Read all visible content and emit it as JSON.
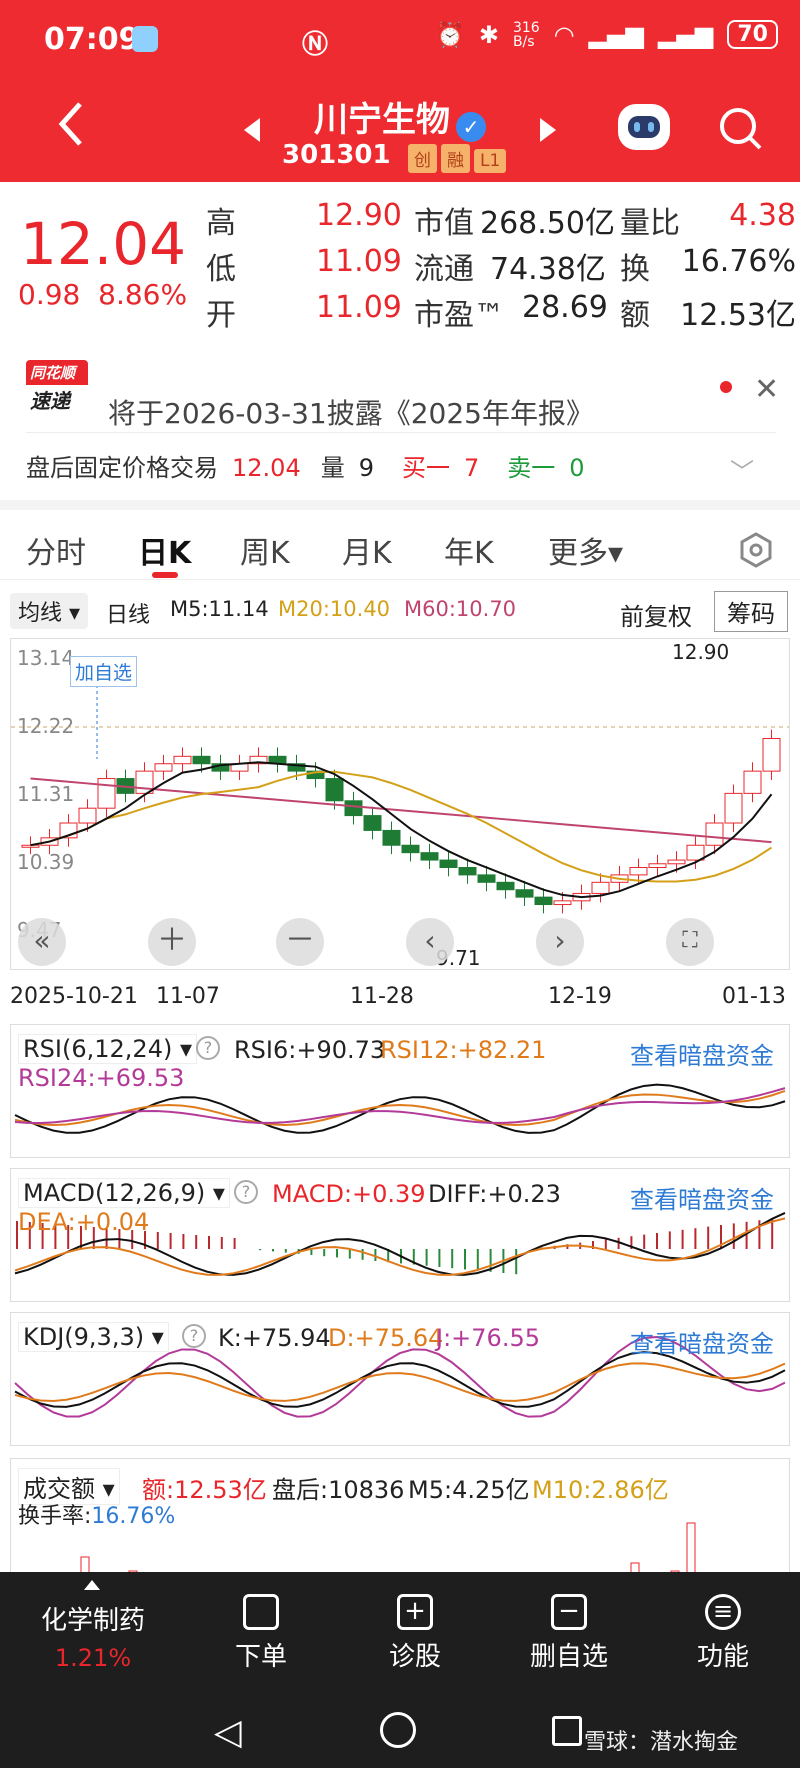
{
  "status": {
    "time": "07:09",
    "net": "316\nB/s",
    "battery": "70"
  },
  "header": {
    "name": "川宁生物",
    "code": "301301",
    "tags": [
      "创",
      "融",
      "L1"
    ]
  },
  "quote": {
    "price": "12.04",
    "change": "0.98",
    "change_pct": "8.86%",
    "rows": [
      {
        "l1": "高",
        "v1": "12.90",
        "l2": "市值",
        "v2": "268.50亿",
        "l3": "量比",
        "v3": "4.38"
      },
      {
        "l1": "低",
        "v1": "11.09",
        "l2": "流通",
        "v2": "74.38亿",
        "l3": "换",
        "v3": "16.76%"
      },
      {
        "l1": "开",
        "v1": "11.09",
        "l2": "市盈™",
        "v2": "28.69",
        "l3": "额",
        "v3": "12.53亿"
      }
    ]
  },
  "notice": {
    "logo_top": "同花顺",
    "logo_bottom": "速递",
    "text": "将于2026-03-31披露《2025年年报》"
  },
  "afterhours": {
    "label": "盘后固定价格交易",
    "price": "12.04",
    "vol_label": "量",
    "vol": "9",
    "buy_label": "买一",
    "buy": "7",
    "sell_label": "卖一",
    "sell": "0"
  },
  "tabs": [
    "分时",
    "日K",
    "周K",
    "月K",
    "年K",
    "更多▾"
  ],
  "ma": {
    "selector": "均线",
    "daily": "日线",
    "m5": "M5:11.14",
    "m20": "M20:10.40",
    "m60": "M60:10.70",
    "adjust": "前复权",
    "chips": "筹码"
  },
  "kline": {
    "y_ticks": [
      "13.14",
      "12.22",
      "11.31",
      "10.39",
      "9.47"
    ],
    "high_label": "12.90",
    "low_label": "9.71",
    "add_label": "加自选",
    "x_ticks": [
      "2025-10-21",
      "11-07",
      "11-28",
      "12-19",
      "01-13"
    ]
  },
  "rsi": {
    "name": "RSI(6,12,24)",
    "v6": "RSI6:+90.73",
    "v12": "RSI12:+82.21",
    "v24": "RSI24:+69.53",
    "link": "查看暗盘资金"
  },
  "macd": {
    "name": "MACD(12,26,9)",
    "macd": "MACD:+0.39",
    "diff": "DIFF:+0.23",
    "dea": "DEA:+0.04",
    "link": "查看暗盘资金"
  },
  "kdj": {
    "name": "KDJ(9,3,3)",
    "k": "K:+75.94",
    "d": "D:+75.64",
    "j": "J:+76.55",
    "link": "查看暗盘资金"
  },
  "vol": {
    "name": "成交额",
    "amt": "额:12.53亿",
    "after": "盘后:10836",
    "m5": "M5:4.25亿",
    "m10": "M10:2.86亿",
    "turnover_label": "换手率:",
    "turnover": "16.76%"
  },
  "bottom": {
    "sector": "化学制药",
    "sector_pct": "1.21%",
    "items": [
      "下单",
      "诊股",
      "删自选",
      "功能"
    ],
    "watermark": "雪球：潜水掏金"
  }
}
